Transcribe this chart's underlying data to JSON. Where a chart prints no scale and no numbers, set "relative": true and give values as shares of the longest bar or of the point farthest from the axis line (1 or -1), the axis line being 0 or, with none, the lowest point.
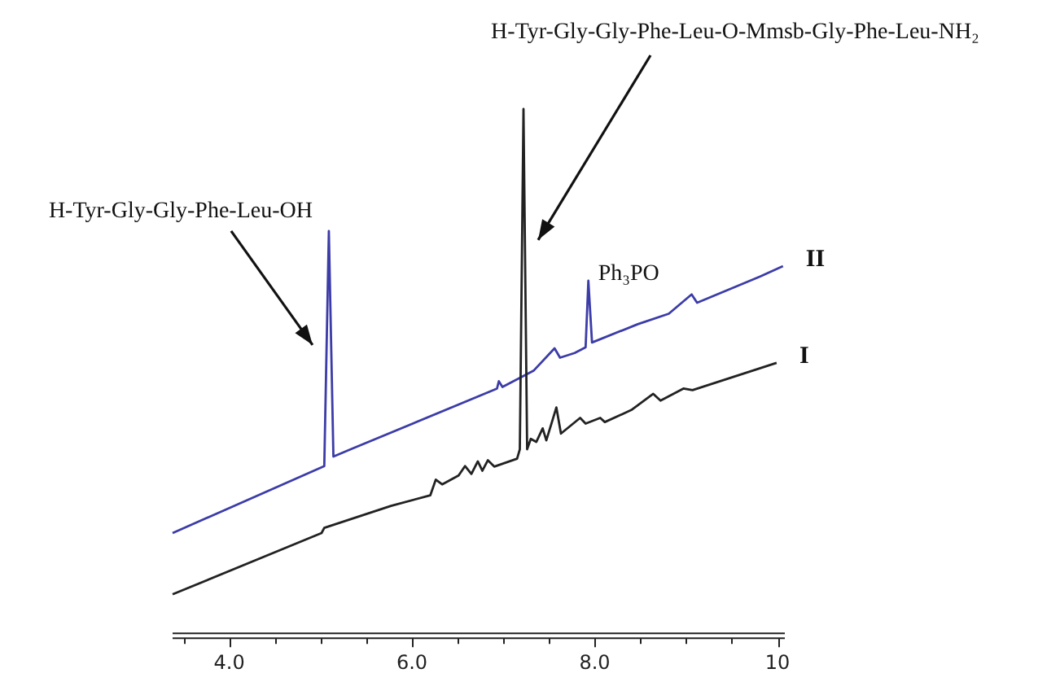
{
  "chart_data": {
    "type": "line",
    "relative": true,
    "marker": "none",
    "line_style": "solid",
    "grid": false,
    "legend": false,
    "tick_labels": "x",
    "xlim": [
      3.38,
      10.08
    ],
    "xticks": [
      {
        "value": 3.5,
        "label": null
      },
      {
        "value": 4,
        "label": "4.0"
      },
      {
        "value": 4.5,
        "label": null
      },
      {
        "value": 5,
        "label": null
      },
      {
        "value": 5.5,
        "label": null
      },
      {
        "value": 6,
        "label": "6.0"
      },
      {
        "value": 6.5,
        "label": null
      },
      {
        "value": 7,
        "label": null
      },
      {
        "value": 7.5,
        "label": null
      },
      {
        "value": 8,
        "label": "8.0"
      },
      {
        "value": 8.5,
        "label": null
      },
      {
        "value": 9,
        "label": null
      },
      {
        "value": 9.5,
        "label": null
      },
      10
    ],
    "series": [
      {
        "name": "I",
        "color": "#222222",
        "x": [
          3.38,
          5.01,
          5.04,
          5.77,
          6.2,
          6.26,
          6.33,
          6.51,
          6.58,
          6.65,
          6.72,
          6.77,
          6.83,
          6.9,
          7.15,
          7.18,
          7.22,
          7.26,
          7.3,
          7.36,
          7.43,
          7.47,
          7.58,
          7.63,
          7.84,
          7.9,
          8.06,
          8.11,
          8.4,
          8.64,
          8.72,
          8.97,
          9.07,
          9.99
        ],
        "values": [
          0.073,
          0.19,
          0.2,
          0.242,
          0.262,
          0.292,
          0.283,
          0.3,
          0.318,
          0.303,
          0.327,
          0.309,
          0.329,
          0.317,
          0.332,
          0.35,
          1,
          0.35,
          0.37,
          0.364,
          0.39,
          0.367,
          0.43,
          0.38,
          0.41,
          0.399,
          0.41,
          0.402,
          0.425,
          0.456,
          0.443,
          0.466,
          0.463,
          0.515
        ]
      },
      {
        "name": "II",
        "color": "#3c3ca8",
        "x": [
          3.38,
          5.04,
          5.09,
          5.14,
          5.33,
          6.93,
          6.95,
          6.99,
          7.33,
          7.56,
          7.62,
          7.78,
          7.9,
          7.93,
          7.97,
          8.47,
          8.81,
          9.06,
          9.12,
          9.81,
          10.06
        ],
        "values": [
          0.19,
          0.318,
          0.767,
          0.336,
          0.35,
          0.466,
          0.48,
          0.469,
          0.5,
          0.543,
          0.525,
          0.534,
          0.545,
          0.672,
          0.554,
          0.589,
          0.609,
          0.646,
          0.63,
          0.68,
          0.7
        ]
      }
    ],
    "annotations": [
      {
        "text": "H-Tyr-Gly-Gly-Phe-Leu-OH",
        "x": 5.09,
        "y": 0.767
      },
      {
        "text": "H-Tyr-Gly-Gly-Phe-Leu-O-Mmsb-Gly-Phe-Leu-NH₂",
        "x": 7.22,
        "y": 1
      },
      {
        "text": "Ph₃PO",
        "x": 7.93,
        "y": 0.672
      }
    ]
  }
}
